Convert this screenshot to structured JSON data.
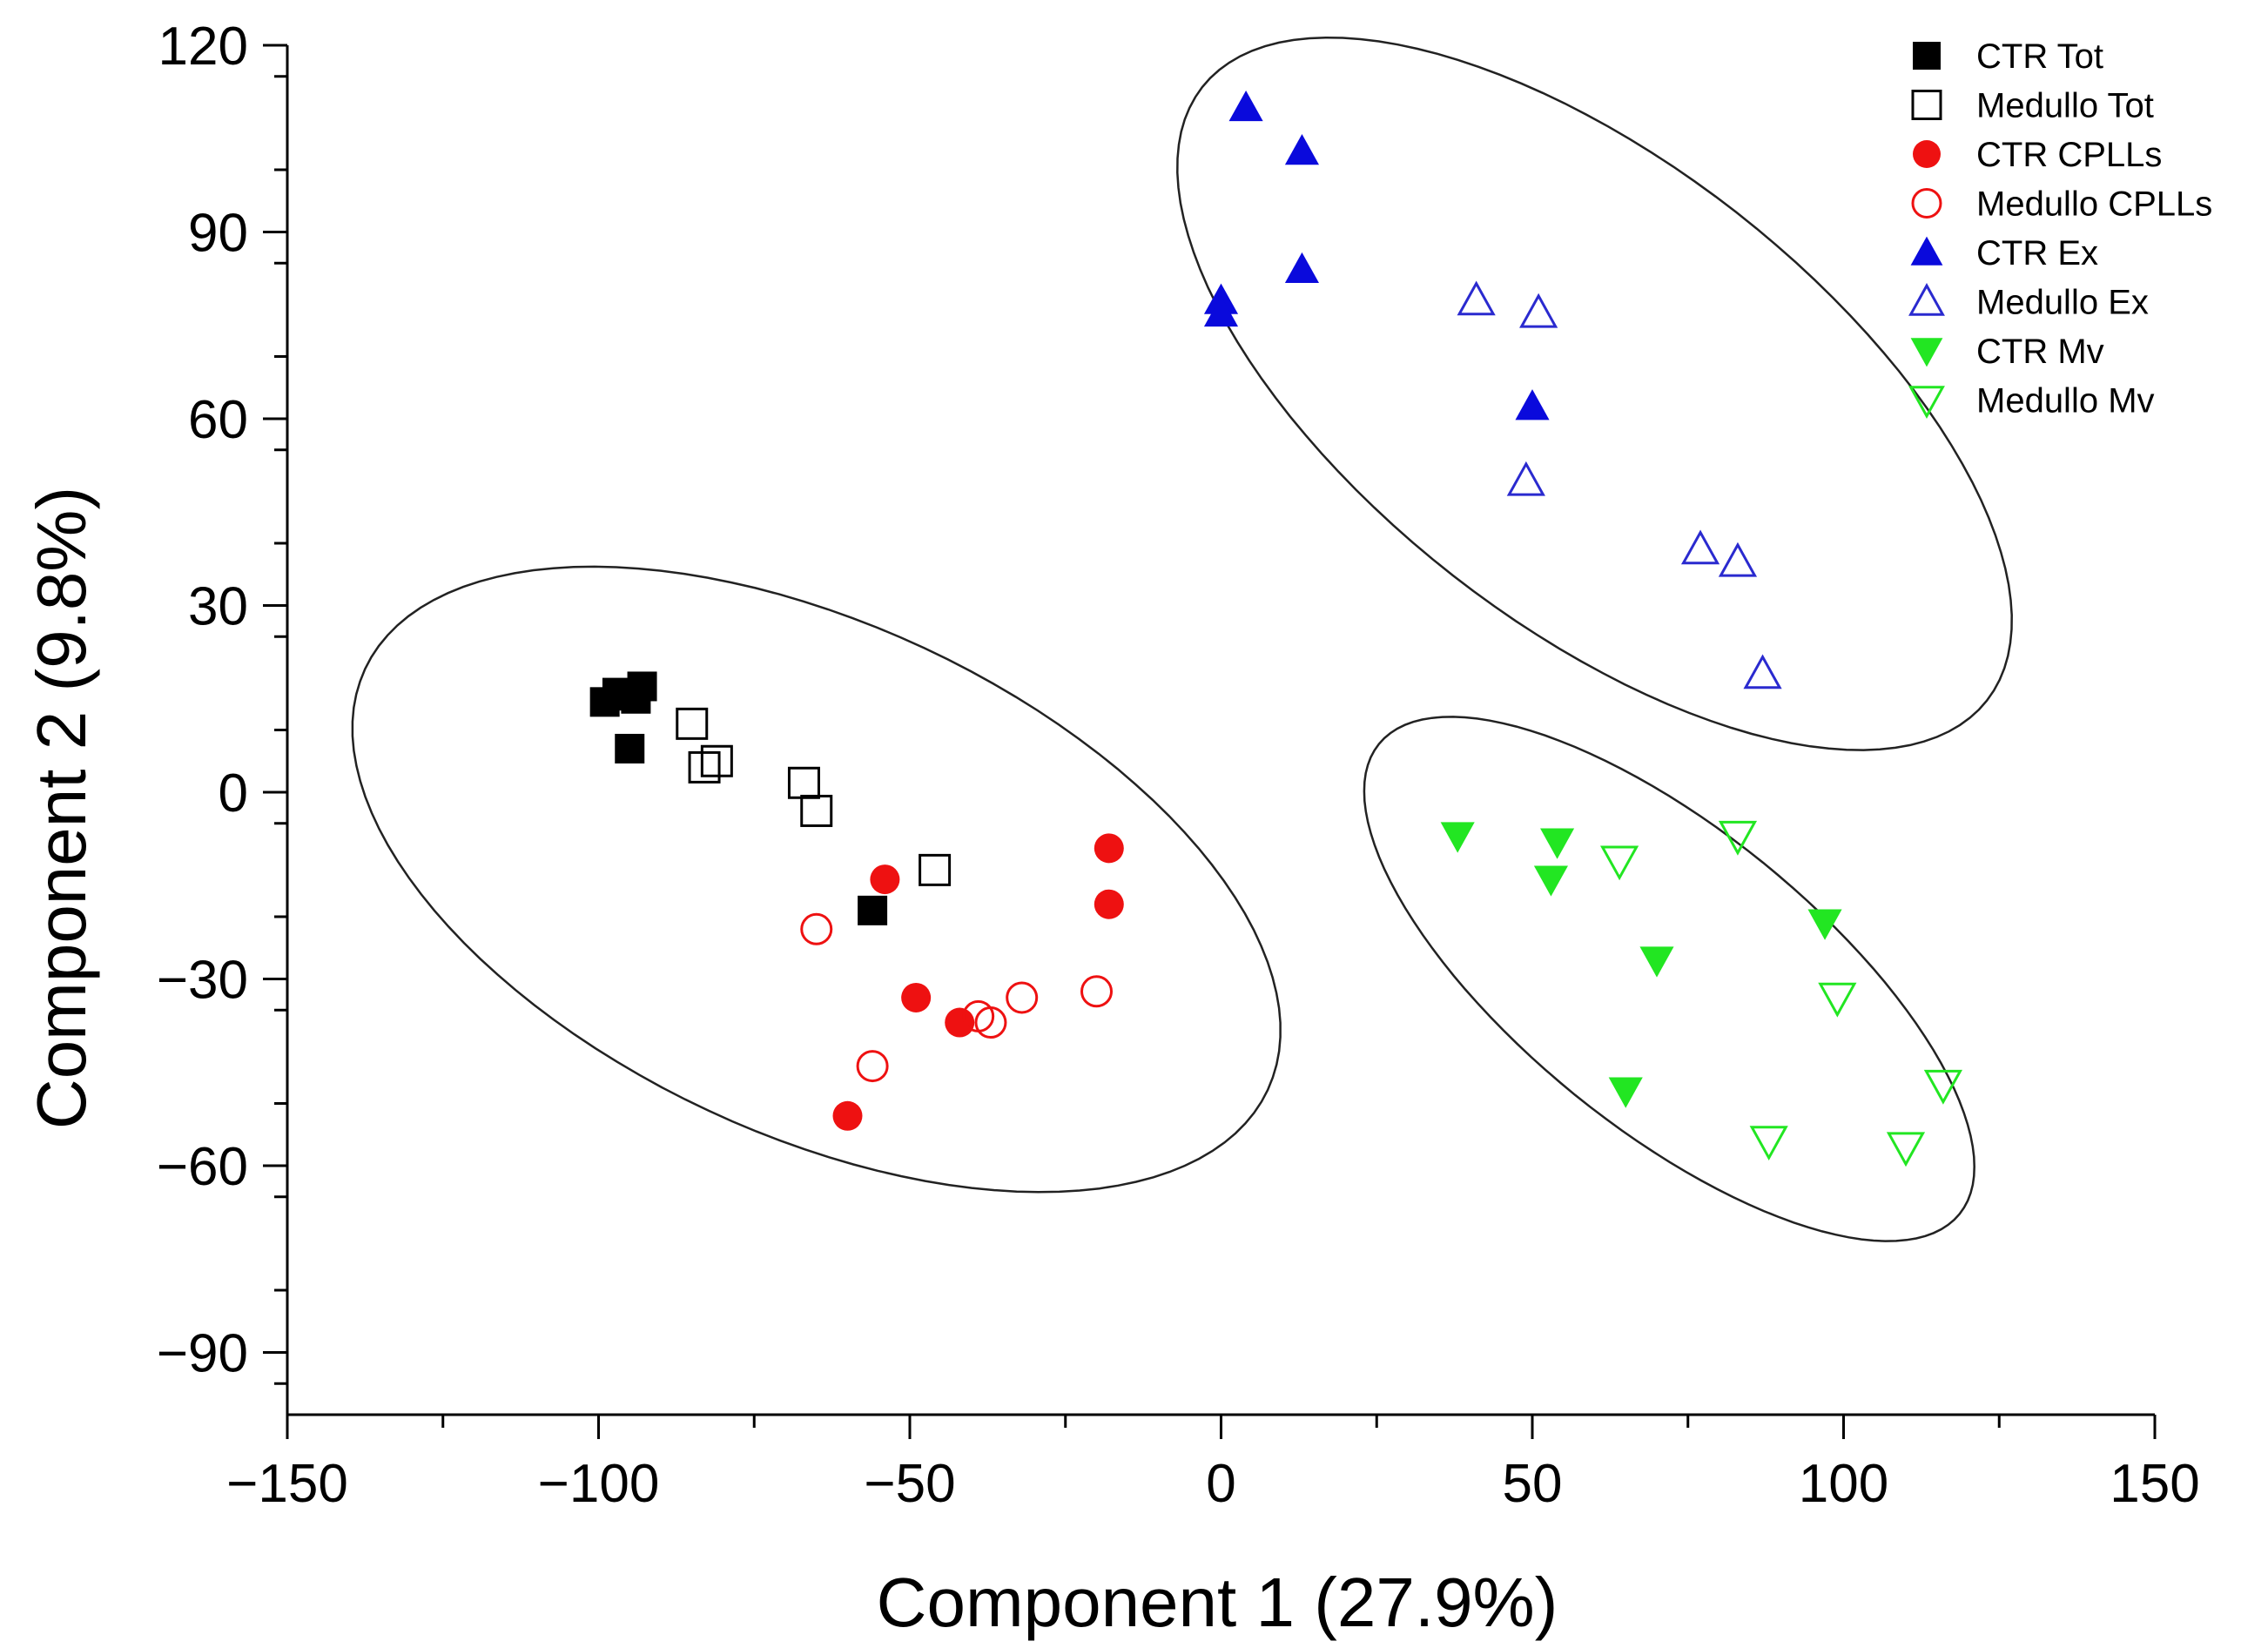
{
  "chart_data": {
    "type": "scatter",
    "title": "",
    "xlabel": "Component 1 (27.9%)",
    "ylabel": "Component 2 (9.8%)",
    "xlim": [
      -150,
      150
    ],
    "ylim": [
      -100,
      120
    ],
    "x_ticks": [
      -150,
      -100,
      -50,
      0,
      50,
      100,
      150
    ],
    "x_tick_labels": [
      "−150",
      "−100",
      "−50",
      "0",
      "50",
      "100",
      "150"
    ],
    "y_ticks": [
      -90,
      -60,
      -30,
      0,
      30,
      60,
      90,
      120
    ],
    "y_tick_labels": [
      "−90",
      "−60",
      "−30",
      "0",
      "30",
      "60",
      "90",
      "120"
    ],
    "grid": false,
    "legend_position": "top-right",
    "series": [
      {
        "name": "CTR Tot",
        "marker": "square",
        "filled": true,
        "color": "#000000",
        "points": [
          [
            -99,
            14.5
          ],
          [
            -97,
            16
          ],
          [
            -95,
            15.5
          ],
          [
            -93,
            17
          ],
          [
            -94,
            15
          ],
          [
            -95,
            7
          ],
          [
            -56,
            -19
          ]
        ]
      },
      {
        "name": "Medullo Tot",
        "marker": "square",
        "filled": false,
        "color": "#000000",
        "points": [
          [
            -85,
            11
          ],
          [
            -83,
            4
          ],
          [
            -81,
            5
          ],
          [
            -67,
            1.5
          ],
          [
            -65,
            -3
          ],
          [
            -46,
            -12.5
          ]
        ]
      },
      {
        "name": "CTR CPLLs",
        "marker": "circle",
        "filled": true,
        "color": "#ee1111",
        "points": [
          [
            -54,
            -14
          ],
          [
            -18,
            -9
          ],
          [
            -18,
            -18
          ],
          [
            -49,
            -33
          ],
          [
            -42,
            -37
          ],
          [
            -60,
            -52
          ]
        ]
      },
      {
        "name": "Medullo CPLLs",
        "marker": "circle",
        "filled": false,
        "color": "#ee1111",
        "points": [
          [
            -65,
            -22
          ],
          [
            -39,
            -36
          ],
          [
            -37,
            -37
          ],
          [
            -32,
            -33
          ],
          [
            -20,
            -32
          ],
          [
            -56,
            -44
          ]
        ]
      },
      {
        "name": "CTR Ex",
        "marker": "triangle-up",
        "filled": true,
        "color": "#0a0adc",
        "points": [
          [
            4,
            110
          ],
          [
            13,
            103
          ],
          [
            13,
            84
          ],
          [
            0,
            79
          ],
          [
            0,
            77
          ],
          [
            50,
            62
          ]
        ]
      },
      {
        "name": "Medullo Ex",
        "marker": "triangle-up",
        "filled": false,
        "color": "#2a2acf",
        "points": [
          [
            41,
            79
          ],
          [
            51,
            77
          ],
          [
            49,
            50
          ],
          [
            77,
            39
          ],
          [
            83,
            37
          ],
          [
            87,
            19
          ]
        ]
      },
      {
        "name": "CTR Mv",
        "marker": "triangle-down",
        "filled": true,
        "color": "#22e622",
        "points": [
          [
            38,
            -7
          ],
          [
            54,
            -8
          ],
          [
            53,
            -14
          ],
          [
            70,
            -27
          ],
          [
            97,
            -21
          ],
          [
            65,
            -48
          ]
        ]
      },
      {
        "name": "Medullo Mv",
        "marker": "triangle-down",
        "filled": false,
        "color": "#22e622",
        "points": [
          [
            64,
            -11
          ],
          [
            83,
            -7
          ],
          [
            99,
            -33
          ],
          [
            116,
            -47
          ],
          [
            88,
            -56
          ],
          [
            110,
            -57
          ]
        ]
      }
    ],
    "ellipses": [
      {
        "center": [
          -65,
          -14
        ],
        "rx": 80,
        "ry": 41,
        "angle_deg": -25
      },
      {
        "center": [
          60,
          64
        ],
        "rx": 80,
        "ry": 37,
        "angle_deg": -38
      },
      {
        "center": [
          72,
          -30
        ],
        "rx": 60,
        "ry": 24,
        "angle_deg": -39
      }
    ]
  }
}
